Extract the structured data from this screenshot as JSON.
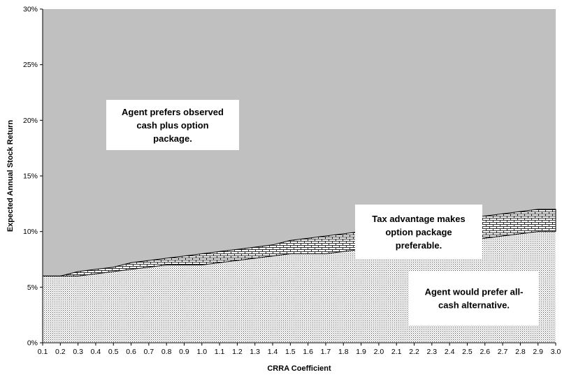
{
  "chart_data": {
    "type": "area",
    "xlabel": "CRRA Coefficient",
    "ylabel": "Expected Annual Stock Return",
    "x": [
      0.1,
      0.2,
      0.3,
      0.4,
      0.5,
      0.6,
      0.7,
      0.8,
      0.9,
      1.0,
      1.1,
      1.2,
      1.3,
      1.4,
      1.5,
      1.6,
      1.7,
      1.8,
      1.9,
      2.0,
      2.1,
      2.2,
      2.3,
      2.4,
      2.5,
      2.6,
      2.7,
      2.8,
      2.9,
      3.0
    ],
    "x_ticks": [
      "0.1",
      "0.2",
      "0.3",
      "0.4",
      "0.5",
      "0.6",
      "0.7",
      "0.8",
      "0.9",
      "1.0",
      "1.1",
      "1.2",
      "1.3",
      "1.4",
      "1.5",
      "1.6",
      "1.7",
      "1.8",
      "1.9",
      "2.0",
      "2.1",
      "2.2",
      "2.3",
      "2.4",
      "2.5",
      "2.6",
      "2.7",
      "2.8",
      "2.9",
      "3.0"
    ],
    "y_ticks": [
      "0%",
      "5%",
      "10%",
      "15%",
      "20%",
      "25%",
      "30%"
    ],
    "ylim": [
      0,
      0.3
    ],
    "xlim": [
      0.1,
      3.0
    ],
    "series": [
      {
        "role": "all-cash-region",
        "values": [
          0.06,
          0.06,
          0.06,
          0.062,
          0.064,
          0.066,
          0.068,
          0.07,
          0.07,
          0.07,
          0.072,
          0.074,
          0.076,
          0.078,
          0.08,
          0.08,
          0.08,
          0.082,
          0.084,
          0.086,
          0.088,
          0.09,
          0.09,
          0.09,
          0.092,
          0.094,
          0.096,
          0.098,
          0.1,
          0.1
        ]
      },
      {
        "role": "tax-advantage-region",
        "values": [
          0.06,
          0.06,
          0.064,
          0.066,
          0.068,
          0.072,
          0.074,
          0.076,
          0.078,
          0.08,
          0.082,
          0.084,
          0.086,
          0.088,
          0.092,
          0.094,
          0.096,
          0.098,
          0.1,
          0.102,
          0.104,
          0.106,
          0.108,
          0.11,
          0.112,
          0.114,
          0.116,
          0.118,
          0.12,
          0.12
        ]
      }
    ],
    "annotations": [
      {
        "id": "cash-plus-option",
        "lines": [
          "Agent prefers observed",
          "cash plus option",
          "package."
        ]
      },
      {
        "id": "tax-advantage",
        "lines": [
          "Tax advantage makes",
          "option package",
          "preferable."
        ]
      },
      {
        "id": "all-cash",
        "lines": [
          "Agent would prefer all-",
          "cash alternative."
        ]
      }
    ],
    "colors": {
      "background_region": "#c0c0c0",
      "outline": "#000000",
      "label_box": "#ffffff"
    },
    "grid": false
  }
}
